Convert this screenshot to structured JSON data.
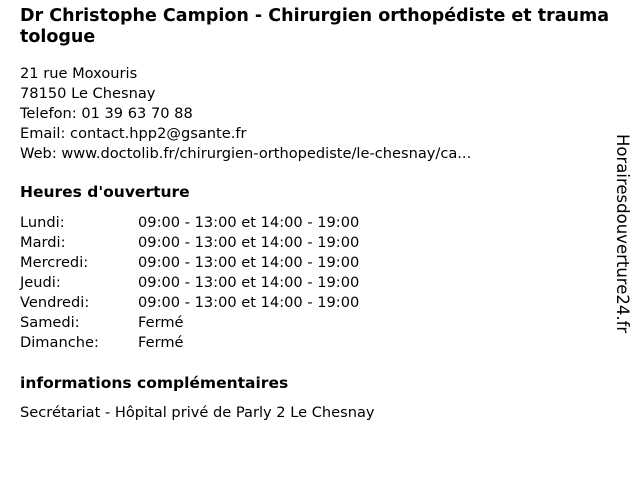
{
  "title": "Dr Christophe Campion - Chirurgien orthopédiste et traumatologue",
  "address": {
    "street": "21 rue Moxouris",
    "city": "78150 Le Chesnay",
    "phone": "Telefon: 01 39 63 70 88",
    "email": "Email: contact.hpp2@gsante.fr",
    "web": "Web: www.doctolib.fr/chirurgien-orthopediste/le-chesnay/ca..."
  },
  "hours_heading": "Heures d'ouverture",
  "hours": [
    {
      "day": "Lundi:",
      "time": "09:00 - 13:00 et 14:00 - 19:00"
    },
    {
      "day": "Mardi:",
      "time": "09:00 - 13:00 et 14:00 - 19:00"
    },
    {
      "day": "Mercredi:",
      "time": "09:00 - 13:00 et 14:00 - 19:00"
    },
    {
      "day": "Jeudi:",
      "time": "09:00 - 13:00 et 14:00 - 19:00"
    },
    {
      "day": "Vendredi:",
      "time": "09:00 - 13:00 et 14:00 - 19:00"
    },
    {
      "day": "Samedi:",
      "time": "Fermé"
    },
    {
      "day": "Dimanche:",
      "time": "Fermé"
    }
  ],
  "info_heading": "informations complémentaires",
  "info_text": "Secrétariat - Hôpital privé de Parly 2 Le Chesnay",
  "watermark": "Horairesdouverture24.fr"
}
